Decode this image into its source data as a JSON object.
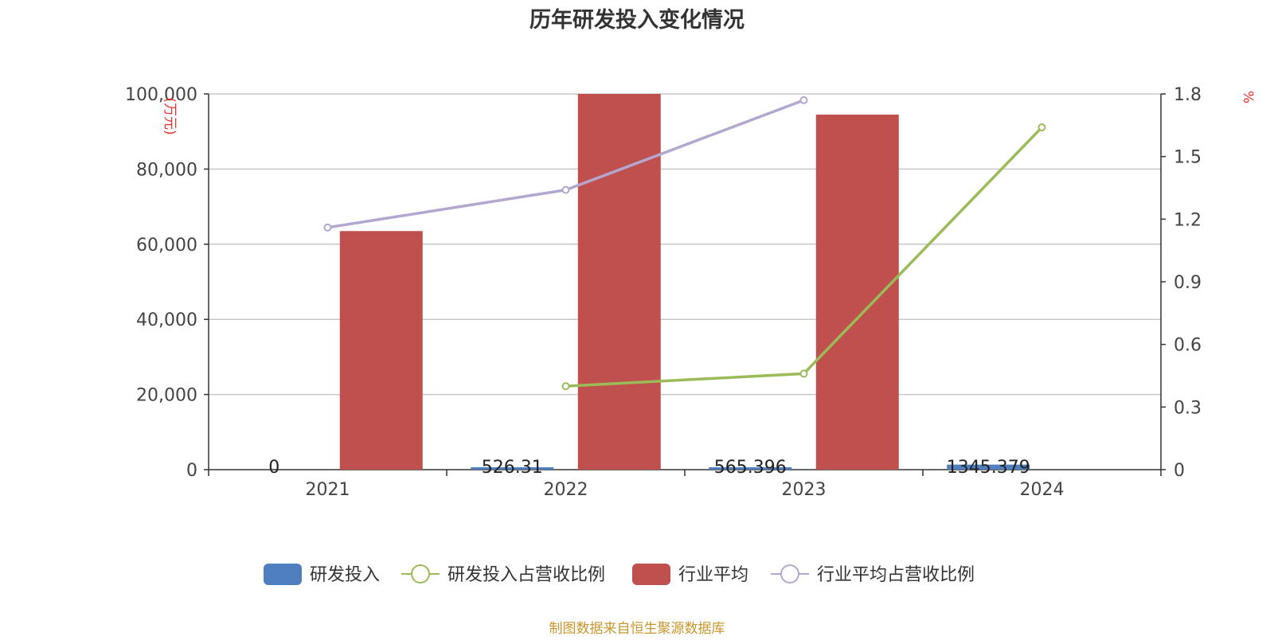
{
  "chart_data": {
    "type": "bar",
    "title": "历年研发投入变化情况",
    "categories": [
      "2021",
      "2022",
      "2023",
      "2024"
    ],
    "y_left": {
      "label": "(万元)",
      "min": 0,
      "max": 100000,
      "ticks": [
        0,
        20000,
        40000,
        60000,
        80000,
        100000
      ],
      "tick_labels": [
        "0",
        "20,000",
        "40,000",
        "60,000",
        "80,000",
        "100,000"
      ]
    },
    "y_right": {
      "label": "%",
      "min": 0,
      "max": 1.8,
      "ticks": [
        0,
        0.3,
        0.6,
        0.9,
        1.2,
        1.5,
        1.8
      ],
      "tick_labels": [
        "0",
        "0.3",
        "0.6",
        "0.9",
        "1.2",
        "1.5",
        "1.8"
      ]
    },
    "series": [
      {
        "name": "研发投入",
        "type": "bar",
        "axis": "left",
        "color": "#4f7fbf",
        "values": [
          0,
          526.31,
          565.396,
          1345.379
        ],
        "labels": [
          "0",
          "526.31",
          "565.396",
          "1345.379"
        ]
      },
      {
        "name": "行业平均",
        "type": "bar",
        "axis": "left",
        "color": "#c0504d",
        "values": [
          63500,
          100000,
          94500,
          null
        ]
      },
      {
        "name": "研发投入占营收比例",
        "type": "line",
        "axis": "right",
        "color": "#9bbb59",
        "values": [
          null,
          0.4,
          0.46,
          1.64
        ]
      },
      {
        "name": "行业平均占营收比例",
        "type": "line",
        "axis": "right",
        "color": "#b3a6cf",
        "values": [
          1.16,
          1.34,
          1.77,
          null
        ]
      }
    ],
    "grid": true,
    "legend_position": "bottom"
  },
  "source": "制图数据来自恒生聚源数据库"
}
